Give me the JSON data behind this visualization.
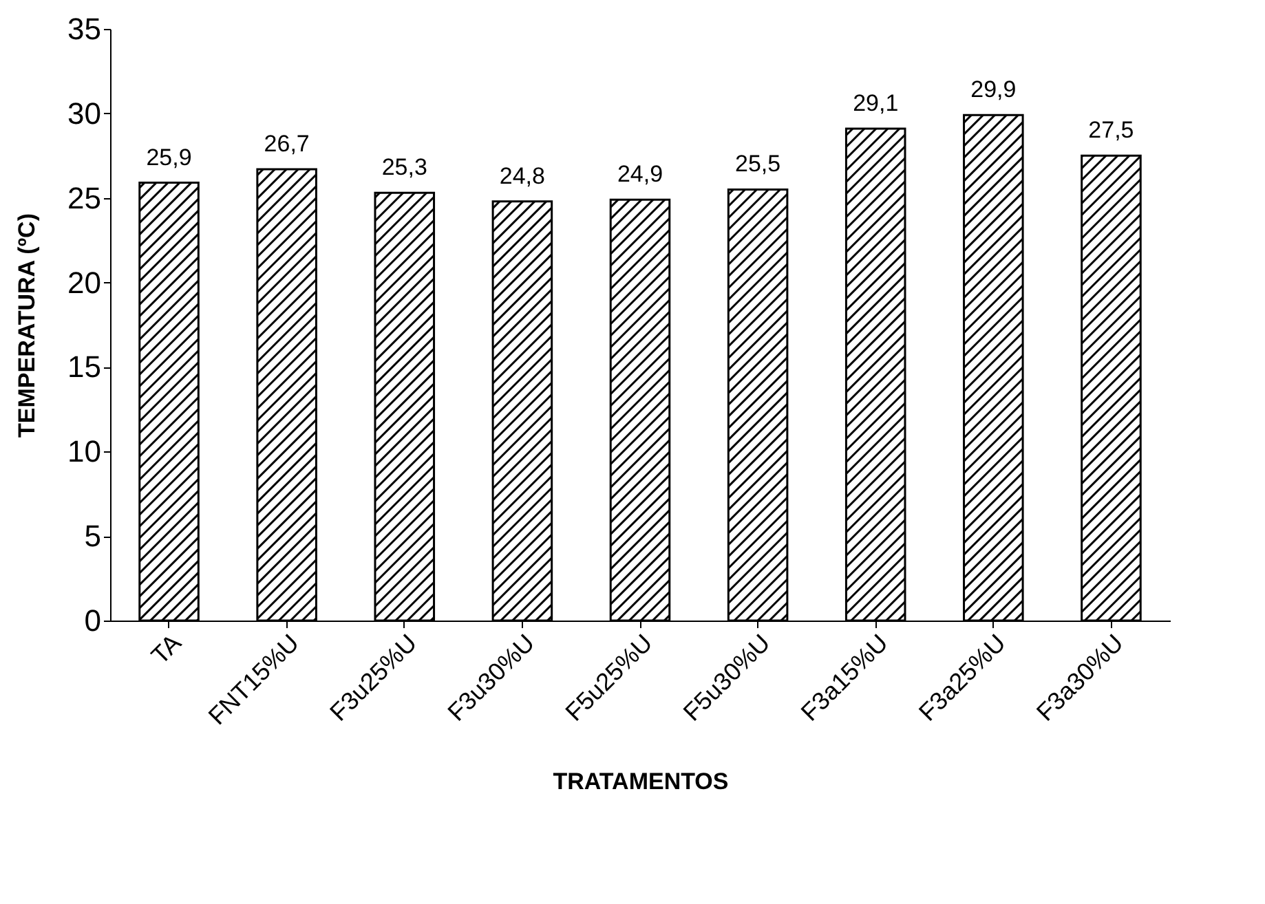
{
  "chart_data": {
    "type": "bar",
    "xlabel": "TRATAMENTOS",
    "ylabel": "TEMPERATURA (ºC)",
    "categories": [
      "TA",
      "FNT15%U",
      "F3u25%U",
      "F3u30%U",
      "F5u25%U",
      "F5u30%U",
      "F3a15%U",
      "F3a25%U",
      "F3a30%U"
    ],
    "values": [
      25.9,
      26.7,
      25.3,
      24.8,
      24.9,
      25.5,
      29.1,
      29.9,
      27.5
    ],
    "value_labels": [
      "25,9",
      "26,7",
      "25,3",
      "24,8",
      "24,9",
      "25,5",
      "29,1",
      "29,9",
      "27,5"
    ],
    "color": "#000000",
    "ylim": [
      0,
      35
    ],
    "yticks": [
      0,
      5,
      10,
      15,
      20,
      25,
      30,
      35
    ],
    "grid": false
  }
}
